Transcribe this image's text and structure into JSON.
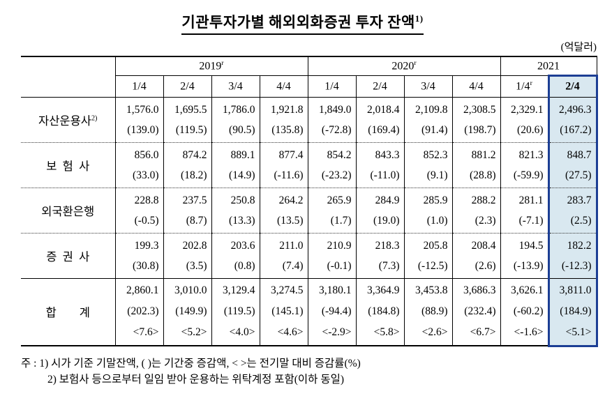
{
  "title": {
    "text": "기관투자가별 해외외화증권 투자 잔액",
    "sup": "1)"
  },
  "unit_label": "(억달러)",
  "table": {
    "year_groups": [
      {
        "label": "2019",
        "sup": "r",
        "span": 4
      },
      {
        "label": "2020",
        "sup": "r",
        "span": 4
      },
      {
        "label": "2021",
        "sup": "",
        "span": 2
      }
    ],
    "quarter_headers": [
      {
        "label": "1/4",
        "sup": ""
      },
      {
        "label": "2/4",
        "sup": ""
      },
      {
        "label": "3/4",
        "sup": ""
      },
      {
        "label": "4/4",
        "sup": ""
      },
      {
        "label": "1/4",
        "sup": ""
      },
      {
        "label": "2/4",
        "sup": ""
      },
      {
        "label": "3/4",
        "sup": ""
      },
      {
        "label": "4/4",
        "sup": ""
      },
      {
        "label": "1/4",
        "sup": "r"
      },
      {
        "label": "2/4",
        "sup": "",
        "highlight": true
      }
    ],
    "rows": [
      {
        "label": "자산운용사",
        "label_sup": "2)",
        "cells": [
          {
            "value": "1,576.0",
            "change": "(139.0)"
          },
          {
            "value": "1,695.5",
            "change": "(119.5)"
          },
          {
            "value": "1,786.0",
            "change": "(90.5)"
          },
          {
            "value": "1,921.8",
            "change": "(135.8)"
          },
          {
            "value": "1,849.0",
            "change": "(-72.8)"
          },
          {
            "value": "2,018.4",
            "change": "(169.4)"
          },
          {
            "value": "2,109.8",
            "change": "(91.4)"
          },
          {
            "value": "2,308.5",
            "change": "(198.7)"
          },
          {
            "value": "2,329.1",
            "change": "(20.6)"
          },
          {
            "value": "2,496.3",
            "change": "(167.2)"
          }
        ]
      },
      {
        "label": "보  험  사",
        "cells": [
          {
            "value": "856.0",
            "change": "(33.0)"
          },
          {
            "value": "874.2",
            "change": "(18.2)"
          },
          {
            "value": "889.1",
            "change": "(14.9)"
          },
          {
            "value": "877.4",
            "change": "(-11.6)"
          },
          {
            "value": "854.2",
            "change": "(-23.2)"
          },
          {
            "value": "843.3",
            "change": "(-11.0)"
          },
          {
            "value": "852.3",
            "change": "(9.1)"
          },
          {
            "value": "881.2",
            "change": "(28.8)"
          },
          {
            "value": "821.3",
            "change": "(-59.9)"
          },
          {
            "value": "848.7",
            "change": "(27.5)"
          }
        ]
      },
      {
        "label": "외국환은행",
        "cells": [
          {
            "value": "228.8",
            "change": "(-0.5)"
          },
          {
            "value": "237.5",
            "change": "(8.7)"
          },
          {
            "value": "250.8",
            "change": "(13.3)"
          },
          {
            "value": "264.2",
            "change": "(13.5)"
          },
          {
            "value": "265.9",
            "change": "(1.7)"
          },
          {
            "value": "284.9",
            "change": "(19.0)"
          },
          {
            "value": "285.9",
            "change": "(1.0)"
          },
          {
            "value": "288.2",
            "change": "(2.3)"
          },
          {
            "value": "281.1",
            "change": "(-7.1)"
          },
          {
            "value": "283.7",
            "change": "(2.5)"
          }
        ]
      },
      {
        "label": "증  권  사",
        "cells": [
          {
            "value": "199.3",
            "change": "(30.8)"
          },
          {
            "value": "202.8",
            "change": "(3.5)"
          },
          {
            "value": "203.6",
            "change": "(0.8)"
          },
          {
            "value": "211.0",
            "change": "(7.4)"
          },
          {
            "value": "210.9",
            "change": "(-0.1)"
          },
          {
            "value": "218.3",
            "change": "(7.3)"
          },
          {
            "value": "205.8",
            "change": "(-12.5)"
          },
          {
            "value": "208.4",
            "change": "(2.6)"
          },
          {
            "value": "194.5",
            "change": "(-13.9)"
          },
          {
            "value": "182.2",
            "change": "(-12.3)"
          }
        ]
      },
      {
        "label": "합        계",
        "total": true,
        "cells": [
          {
            "value": "2,860.1",
            "change": "(202.3)",
            "rate": "<7.6>"
          },
          {
            "value": "3,010.0",
            "change": "(149.9)",
            "rate": "<5.2>"
          },
          {
            "value": "3,129.4",
            "change": "(119.5)",
            "rate": "<4.0>"
          },
          {
            "value": "3,274.5",
            "change": "(145.1)",
            "rate": "<4.6>"
          },
          {
            "value": "3,180.1",
            "change": "(-94.4)",
            "rate": "<-2.9>"
          },
          {
            "value": "3,364.9",
            "change": "(184.8)",
            "rate": "<5.8>"
          },
          {
            "value": "3,453.8",
            "change": "(88.9)",
            "rate": "<2.6>"
          },
          {
            "value": "3,686.3",
            "change": "(232.4)",
            "rate": "<6.7>"
          },
          {
            "value": "3,626.1",
            "change": "(-60.2)",
            "rate": "<-1.6>"
          },
          {
            "value": "3,811.0",
            "change": "(184.9)",
            "rate": "<5.1>"
          }
        ]
      }
    ]
  },
  "notes": {
    "line1": "주 : 1) 시가 기준 기말잔액, (    )는 기간중 증감액, <  >는 전기말 대비 증감률(%)",
    "line2": "2) 보험사 등으로부터 일임 받아 운용하는 위탁계정 포함(이하 동일)"
  },
  "colors": {
    "highlight_bg": "#d9e8f0",
    "highlight_border": "#1c3e94"
  }
}
